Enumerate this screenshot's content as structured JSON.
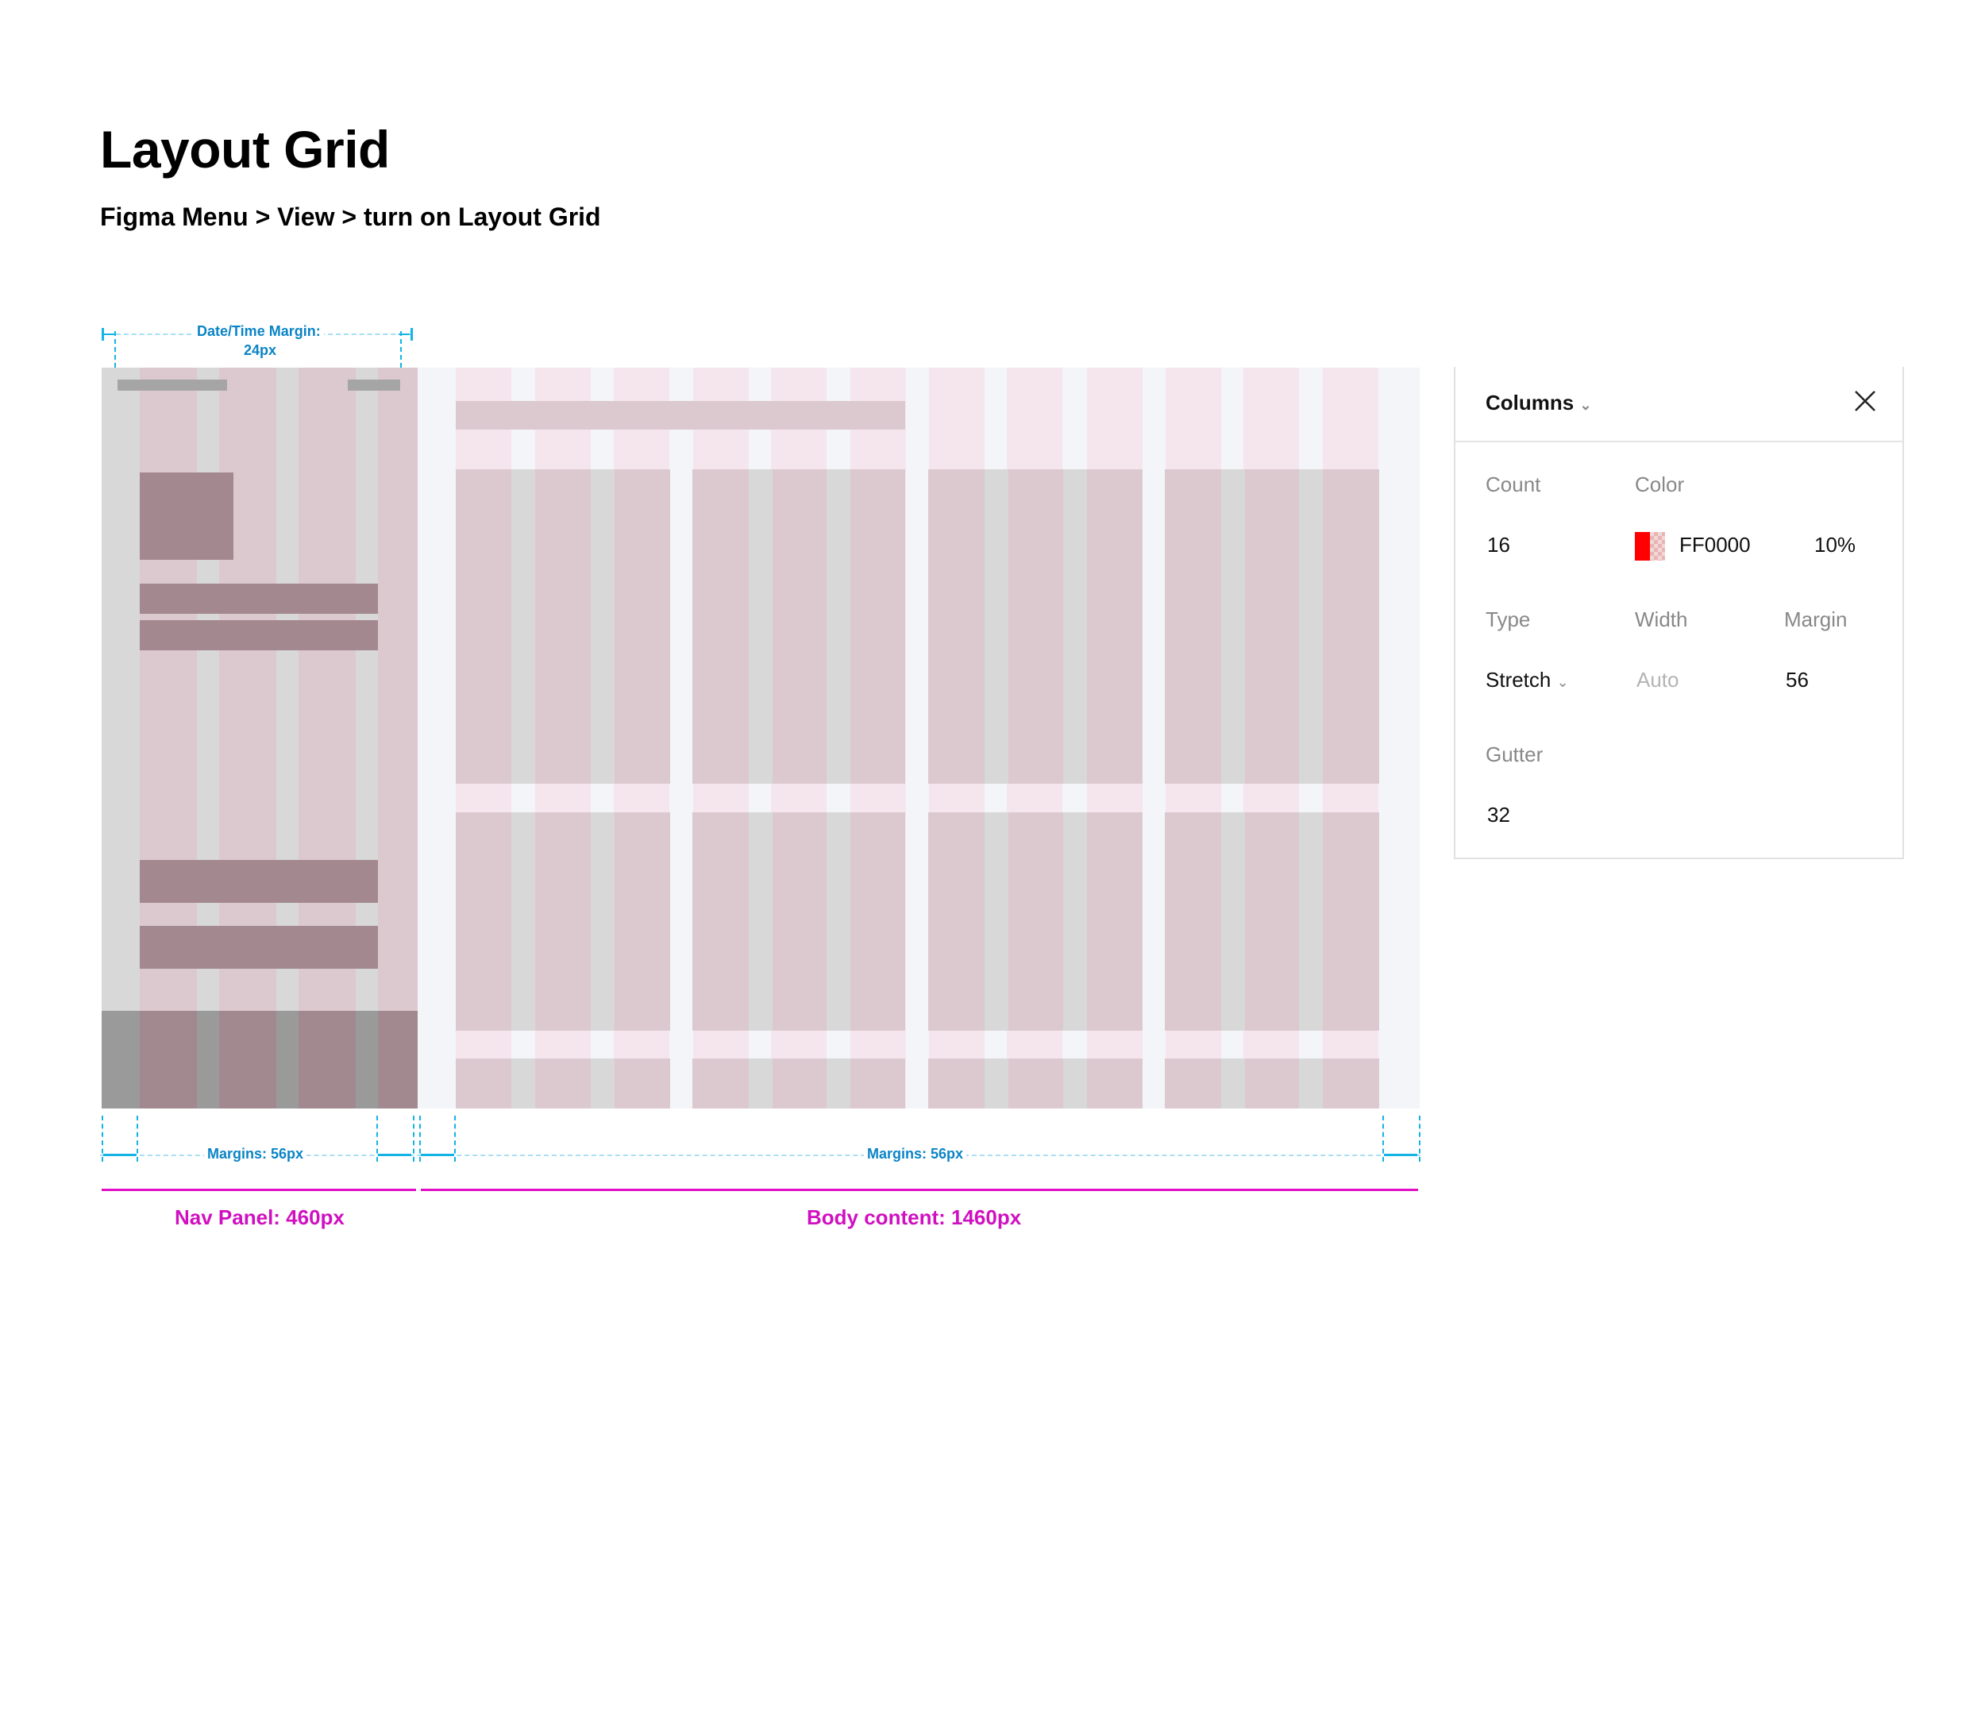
{
  "page": {
    "title": "Layout Grid",
    "subtitle": "Figma Menu > View > turn on Layout Grid"
  },
  "annotations": {
    "datetime_margin_line1": "Date/Time Margin:",
    "datetime_margin_line2": "24px",
    "nav_margins": "Margins: 56px",
    "body_margins": "Margins: 56px",
    "nav_panel": "Nav Panel: 460px",
    "body_content": "Body content: 1460px"
  },
  "grid_panel": {
    "title": "Columns",
    "count_label": "Count",
    "count_value": "16",
    "color_label": "Color",
    "color_hex": "FF0000",
    "color_opacity": "10%",
    "type_label": "Type",
    "type_value": "Stretch",
    "width_label": "Width",
    "width_value": "Auto",
    "margin_label": "Margin",
    "margin_value": "56",
    "gutter_label": "Gutter",
    "gutter_value": "32"
  },
  "icons": {
    "title_chevron": "chevron-down-icon",
    "type_chevron": "chevron-down-icon",
    "close": "close-icon",
    "swatch": "color-swatch-icon"
  },
  "colors": {
    "annotation_blue": "#13b3e6",
    "annotation_magenta": "#e010c6",
    "grid_red": "#ff0000",
    "column_pink": "#f5e6ee",
    "card_mauve": "#dcc9d0"
  }
}
